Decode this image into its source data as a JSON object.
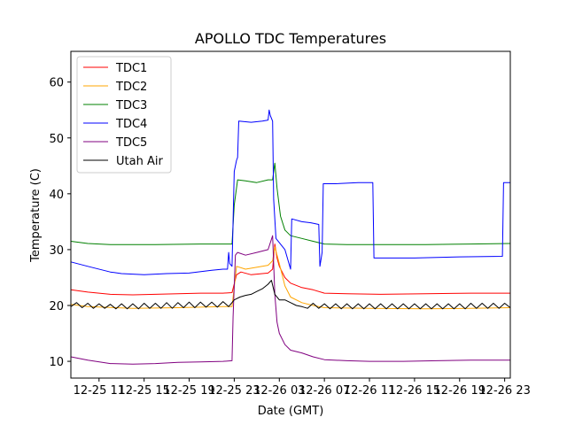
{
  "chart_data": {
    "type": "line",
    "title": "APOLLO TDC Temperatures",
    "xlabel": "Date (GMT)",
    "ylabel": "Temperature (C)",
    "xlim": [
      8.5,
      47.5
    ],
    "ylim": [
      7,
      65.5
    ],
    "x_ticks": [
      {
        "x": 11,
        "label": "12-25 11"
      },
      {
        "x": 15,
        "label": "12-25 15"
      },
      {
        "x": 19,
        "label": "12-25 19"
      },
      {
        "x": 23,
        "label": "12-25 23"
      },
      {
        "x": 27,
        "label": "12-26 03"
      },
      {
        "x": 31,
        "label": "12-26 07"
      },
      {
        "x": 35,
        "label": "12-26 11"
      },
      {
        "x": 39,
        "label": "12-26 15"
      },
      {
        "x": 43,
        "label": "12-26 19"
      },
      {
        "x": 47,
        "label": "12-26 23"
      }
    ],
    "y_ticks": [
      10,
      20,
      30,
      40,
      50,
      60
    ],
    "legend_position": "top-left",
    "series": [
      {
        "name": "TDC1",
        "color": "#ff0000",
        "points": [
          [
            8.5,
            22.8
          ],
          [
            10,
            22.4
          ],
          [
            12,
            22.0
          ],
          [
            14,
            21.9
          ],
          [
            16,
            22.0
          ],
          [
            18,
            22.1
          ],
          [
            20,
            22.2
          ],
          [
            22,
            22.2
          ],
          [
            22.8,
            22.3
          ],
          [
            23.2,
            25.5
          ],
          [
            23.6,
            26.0
          ],
          [
            24.5,
            25.5
          ],
          [
            26,
            25.8
          ],
          [
            26.4,
            26.5
          ],
          [
            26.6,
            31.0
          ],
          [
            26.8,
            28.5
          ],
          [
            27,
            27.0
          ],
          [
            27.5,
            25.0
          ],
          [
            28,
            24.0
          ],
          [
            29,
            23.2
          ],
          [
            30,
            22.8
          ],
          [
            31,
            22.2
          ],
          [
            33,
            22.1
          ],
          [
            36,
            22.0
          ],
          [
            40,
            22.1
          ],
          [
            44,
            22.2
          ],
          [
            47.5,
            22.2
          ]
        ]
      },
      {
        "name": "TDC2",
        "color": "#ffa500",
        "points": [
          [
            8.5,
            20.2
          ],
          [
            10,
            19.8
          ],
          [
            14,
            19.5
          ],
          [
            18,
            19.6
          ],
          [
            22,
            19.8
          ],
          [
            22.8,
            19.8
          ],
          [
            23.2,
            27.0
          ],
          [
            24,
            26.5
          ],
          [
            26,
            27.2
          ],
          [
            26.4,
            28.0
          ],
          [
            26.6,
            30.5
          ],
          [
            27,
            27.5
          ],
          [
            27.5,
            23.5
          ],
          [
            28,
            21.5
          ],
          [
            29,
            20.5
          ],
          [
            30,
            20.0
          ],
          [
            31,
            19.6
          ],
          [
            35,
            19.5
          ],
          [
            40,
            19.4
          ],
          [
            44,
            19.5
          ],
          [
            47.5,
            19.6
          ]
        ]
      },
      {
        "name": "TDC3",
        "color": "#008000",
        "points": [
          [
            8.5,
            31.5
          ],
          [
            10,
            31.1
          ],
          [
            12,
            30.9
          ],
          [
            16,
            30.9
          ],
          [
            20,
            31.0
          ],
          [
            22.8,
            31.0
          ],
          [
            23,
            38.0
          ],
          [
            23.3,
            42.5
          ],
          [
            24,
            42.3
          ],
          [
            25,
            42.0
          ],
          [
            26,
            42.5
          ],
          [
            26.4,
            42.5
          ],
          [
            26.6,
            45.5
          ],
          [
            26.8,
            41.0
          ],
          [
            27.1,
            36.0
          ],
          [
            27.5,
            33.5
          ],
          [
            28,
            32.5
          ],
          [
            29,
            32.0
          ],
          [
            30,
            31.5
          ],
          [
            31,
            31.0
          ],
          [
            33,
            30.9
          ],
          [
            36,
            30.9
          ],
          [
            40,
            30.9
          ],
          [
            44,
            31.0
          ],
          [
            47.5,
            31.1
          ]
        ]
      },
      {
        "name": "TDC4",
        "color": "#0000ff",
        "points": [
          [
            8.5,
            27.8
          ],
          [
            10,
            27.0
          ],
          [
            12,
            26.0
          ],
          [
            13,
            25.7
          ],
          [
            15,
            25.5
          ],
          [
            17,
            25.7
          ],
          [
            19,
            25.8
          ],
          [
            21,
            26.3
          ],
          [
            22,
            26.5
          ],
          [
            22.4,
            26.5
          ],
          [
            22.5,
            29.5
          ],
          [
            22.6,
            27.5
          ],
          [
            22.8,
            27.0
          ],
          [
            23,
            44.0
          ],
          [
            23.2,
            46.0
          ],
          [
            23.3,
            46.5
          ],
          [
            23.4,
            53.0
          ],
          [
            24.5,
            52.8
          ],
          [
            25.5,
            53.0
          ],
          [
            26,
            53.2
          ],
          [
            26.1,
            55.0
          ],
          [
            26.2,
            54.0
          ],
          [
            26.4,
            53.0
          ],
          [
            26.5,
            39.0
          ],
          [
            26.7,
            32.0
          ],
          [
            27.5,
            30.0
          ],
          [
            28,
            26.5
          ],
          [
            28.1,
            35.5
          ],
          [
            29,
            35.0
          ],
          [
            29.8,
            34.8
          ],
          [
            30.5,
            34.5
          ],
          [
            30.6,
            27.0
          ],
          [
            30.8,
            29.5
          ],
          [
            30.9,
            41.8
          ],
          [
            32,
            41.8
          ],
          [
            34,
            42.0
          ],
          [
            35.3,
            42.0
          ],
          [
            35.4,
            28.5
          ],
          [
            37,
            28.5
          ],
          [
            39,
            28.5
          ],
          [
            41,
            28.6
          ],
          [
            43,
            28.7
          ],
          [
            46.8,
            28.8
          ],
          [
            46.9,
            42.0
          ],
          [
            47.5,
            42.0
          ]
        ]
      },
      {
        "name": "TDC5",
        "color": "#800080",
        "points": [
          [
            8.5,
            10.8
          ],
          [
            10,
            10.2
          ],
          [
            12,
            9.6
          ],
          [
            14,
            9.5
          ],
          [
            16,
            9.6
          ],
          [
            18,
            9.8
          ],
          [
            20,
            9.9
          ],
          [
            22,
            10.0
          ],
          [
            22.8,
            10.1
          ],
          [
            22.9,
            18.0
          ],
          [
            23.1,
            29.0
          ],
          [
            23.3,
            29.5
          ],
          [
            24,
            29.0
          ],
          [
            25,
            29.5
          ],
          [
            26,
            30.0
          ],
          [
            26.4,
            32.5
          ],
          [
            26.6,
            22.0
          ],
          [
            26.8,
            17.0
          ],
          [
            27,
            15.0
          ],
          [
            27.5,
            13.0
          ],
          [
            28,
            12.0
          ],
          [
            29,
            11.5
          ],
          [
            30,
            10.8
          ],
          [
            31,
            10.3
          ],
          [
            33,
            10.1
          ],
          [
            35,
            10.0
          ],
          [
            38,
            10.0
          ],
          [
            41,
            10.1
          ],
          [
            44,
            10.2
          ],
          [
            47.5,
            10.2
          ]
        ]
      },
      {
        "name": "Utah Air",
        "color": "#000000",
        "points": [
          [
            8.5,
            19.8
          ],
          [
            9,
            20.5
          ],
          [
            9.5,
            19.6
          ],
          [
            10,
            20.4
          ],
          [
            10.5,
            19.5
          ],
          [
            11,
            20.3
          ],
          [
            11.5,
            19.5
          ],
          [
            12,
            20.2
          ],
          [
            12.5,
            19.4
          ],
          [
            13,
            20.3
          ],
          [
            13.5,
            19.4
          ],
          [
            14,
            20.3
          ],
          [
            14.5,
            19.4
          ],
          [
            15,
            20.4
          ],
          [
            15.5,
            19.5
          ],
          [
            16,
            20.4
          ],
          [
            16.5,
            19.5
          ],
          [
            17,
            20.5
          ],
          [
            17.5,
            19.5
          ],
          [
            18,
            20.5
          ],
          [
            18.5,
            19.6
          ],
          [
            19,
            20.6
          ],
          [
            19.5,
            19.6
          ],
          [
            20,
            20.6
          ],
          [
            20.5,
            19.7
          ],
          [
            21,
            20.6
          ],
          [
            21.5,
            19.7
          ],
          [
            22,
            20.7
          ],
          [
            22.5,
            19.8
          ],
          [
            23,
            21.0
          ],
          [
            23.5,
            21.5
          ],
          [
            24,
            21.8
          ],
          [
            24.5,
            22.0
          ],
          [
            25,
            22.5
          ],
          [
            25.5,
            23.0
          ],
          [
            26,
            23.8
          ],
          [
            26.3,
            24.5
          ],
          [
            26.6,
            22.0
          ],
          [
            27,
            21.0
          ],
          [
            27.5,
            21.0
          ],
          [
            28,
            20.5
          ],
          [
            28.5,
            20.0
          ],
          [
            29,
            19.8
          ],
          [
            29.5,
            19.5
          ],
          [
            30,
            20.4
          ],
          [
            30.5,
            19.5
          ],
          [
            31,
            20.3
          ],
          [
            31.5,
            19.4
          ],
          [
            32,
            20.3
          ],
          [
            32.5,
            19.4
          ],
          [
            33,
            20.3
          ],
          [
            33.5,
            19.4
          ],
          [
            34,
            20.3
          ],
          [
            34.5,
            19.4
          ],
          [
            35,
            20.3
          ],
          [
            35.5,
            19.4
          ],
          [
            36,
            20.3
          ],
          [
            36.5,
            19.4
          ],
          [
            37,
            20.3
          ],
          [
            37.5,
            19.4
          ],
          [
            38,
            20.3
          ],
          [
            38.5,
            19.4
          ],
          [
            39,
            20.3
          ],
          [
            39.5,
            19.4
          ],
          [
            40,
            20.3
          ],
          [
            40.5,
            19.4
          ],
          [
            41,
            20.3
          ],
          [
            41.5,
            19.4
          ],
          [
            42,
            20.3
          ],
          [
            42.5,
            19.4
          ],
          [
            43,
            20.3
          ],
          [
            43.5,
            19.4
          ],
          [
            44,
            20.4
          ],
          [
            44.5,
            19.5
          ],
          [
            45,
            20.4
          ],
          [
            45.5,
            19.5
          ],
          [
            46,
            20.4
          ],
          [
            46.5,
            19.5
          ],
          [
            47,
            20.4
          ],
          [
            47.5,
            19.6
          ]
        ]
      }
    ]
  }
}
